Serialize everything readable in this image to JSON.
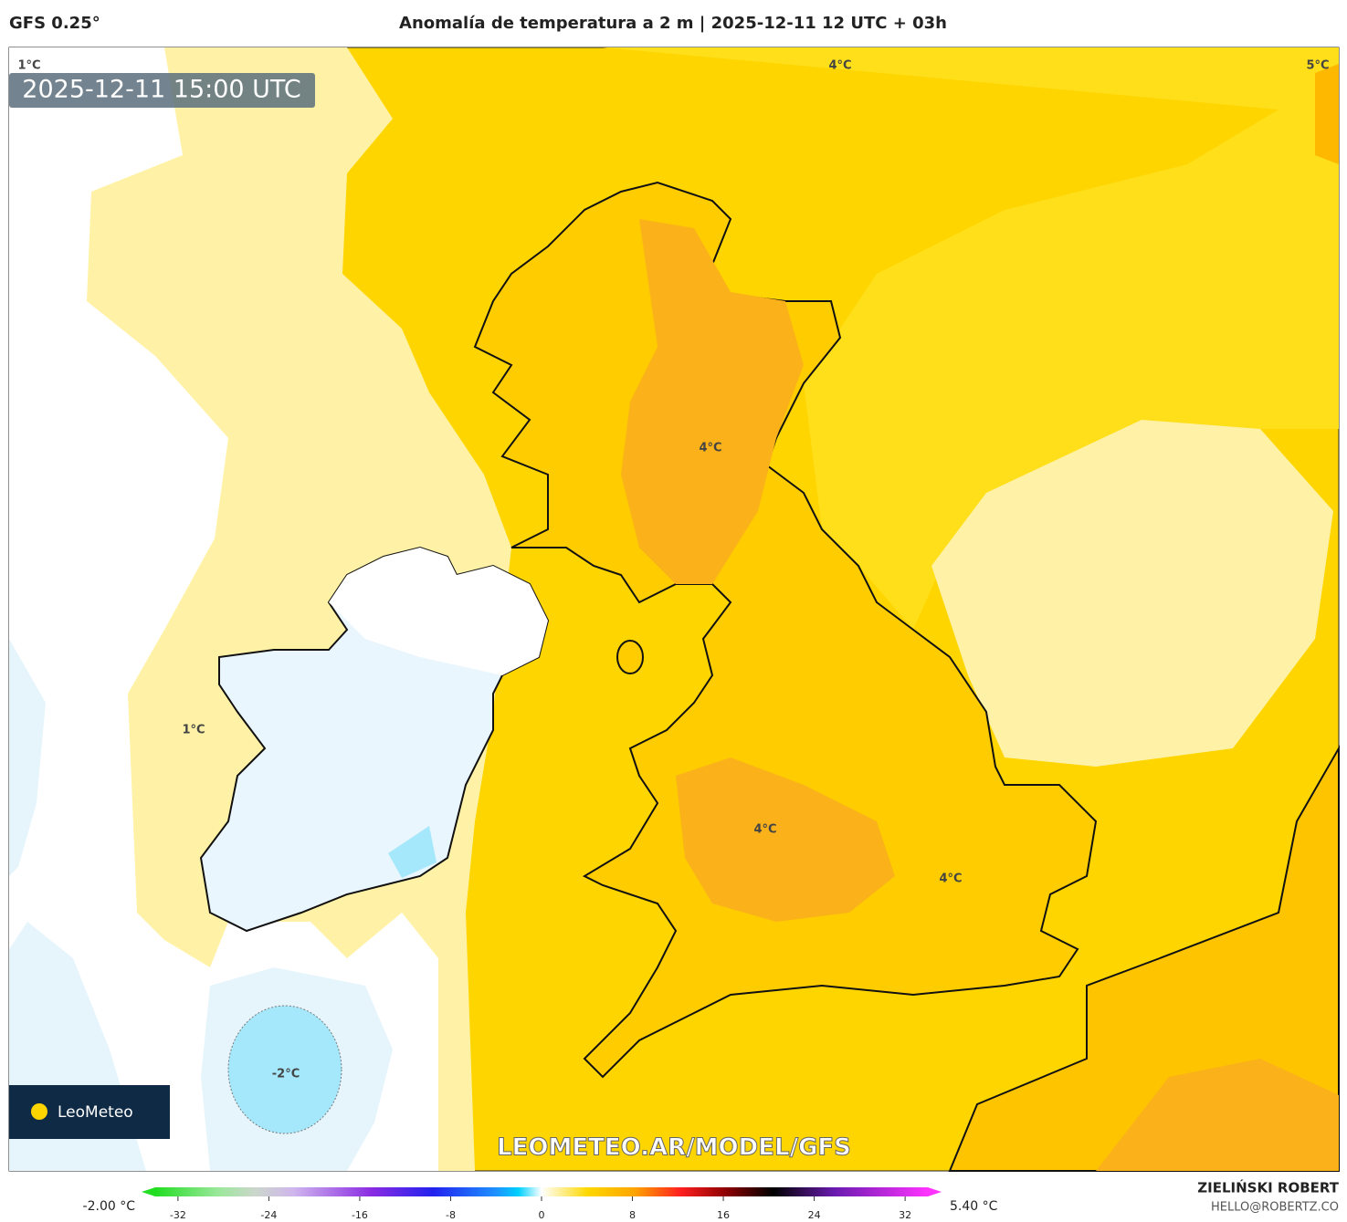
{
  "header": {
    "model": "GFS 0.25°",
    "title": "Anomalía de temperatura a 2 m | 2025-12-11 12 UTC + 03h"
  },
  "map": {
    "timestamp": "2025-12-11 15:00 UTC",
    "contour_labels": [
      "1°C",
      "4°C",
      "5°C",
      "4°C",
      "1°C",
      "4°C",
      "4°C",
      "-2°C"
    ],
    "watermark": "LEOMETEO.AR/MODEL/GFS",
    "logo": "LeoMeteo"
  },
  "colorbar": {
    "min_label": "-2.00 °C",
    "max_label": "5.40 °C",
    "lim": [
      -34,
      34
    ],
    "ticks": [
      -32,
      -24,
      -16,
      -8,
      0,
      8,
      16,
      24,
      32
    ]
  },
  "footer": {
    "author": "ZIELIŃSKI ROBERT",
    "email": "HELLO@ROBERTZ.CO"
  }
}
